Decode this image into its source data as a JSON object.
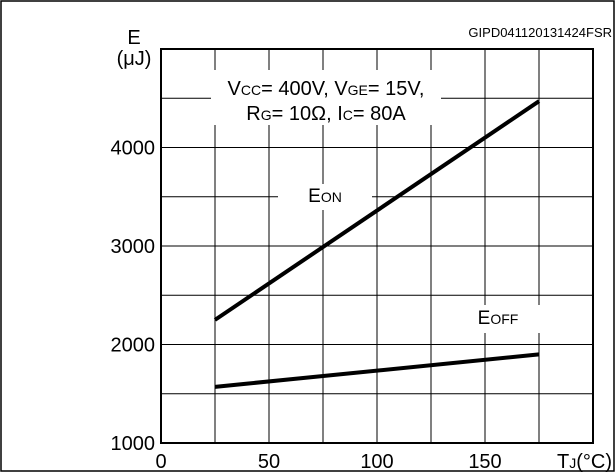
{
  "chart_data": {
    "type": "line",
    "figure_id": "GIPD041120131424FSR",
    "ylabel_symbol": "E",
    "ylabel_unit": "(μJ)",
    "xlabel": "T",
    "xlabel_sub": "J",
    "xlabel_unit": "(°C)",
    "xlim": [
      0,
      200
    ],
    "ylim": [
      1000,
      5000
    ],
    "x_ticks": [
      0,
      50,
      100,
      150
    ],
    "y_ticks": [
      1000,
      2000,
      3000,
      4000
    ],
    "grid": true,
    "conditions": [
      [
        {
          "t": "V",
          "sub": false
        },
        {
          "t": "CC",
          "sub": true
        },
        {
          "t": "= 400V, V",
          "sub": false
        },
        {
          "t": "GE",
          "sub": true
        },
        {
          "t": "= 15V,",
          "sub": false
        }
      ],
      [
        {
          "t": "R",
          "sub": false
        },
        {
          "t": "G",
          "sub": true
        },
        {
          "t": "= 10Ω, I",
          "sub": false
        },
        {
          "t": "C",
          "sub": true
        },
        {
          "t": "= 80A",
          "sub": false
        }
      ]
    ],
    "series": [
      {
        "name": "E",
        "name_sub": "ON",
        "x": [
          25,
          175
        ],
        "y": [
          2250,
          4470
        ]
      },
      {
        "name": "E",
        "name_sub": "OFF",
        "x": [
          25,
          175
        ],
        "y": [
          1570,
          1900
        ]
      }
    ]
  }
}
